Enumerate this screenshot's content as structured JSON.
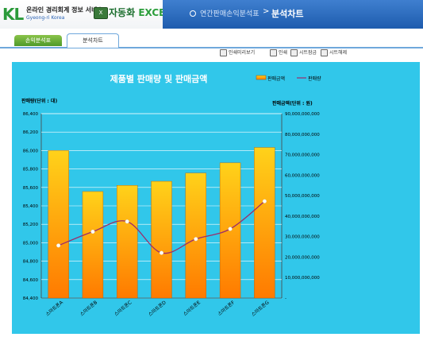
{
  "header": {
    "logo_text": "KL",
    "logo_main": "온라인 경리회계 정보 서비스",
    "logo_sub": "Gyeong-ri Korea",
    "excel_badge": "X",
    "excel_title_ko": "자동화",
    "excel_title_en": "EXCEL",
    "breadcrumb_parent": "연간판매손익분석표",
    "breadcrumb_sep": ">",
    "breadcrumb_current": "분석차트"
  },
  "tabs": [
    {
      "label": "손익분석표"
    },
    {
      "label": "분석차트"
    }
  ],
  "toolbar": [
    {
      "label": "인쇄미리보기",
      "icon": "print-preview-icon"
    },
    {
      "label": "인쇄",
      "icon": "print-icon"
    },
    {
      "label": "시트잠금",
      "icon": "lock-icon"
    },
    {
      "label": "시트해제",
      "icon": "unlock-icon"
    }
  ],
  "chart_data": {
    "type": "bar",
    "title": "제품별 판매량 및 판매금액",
    "ylabel": "판매량(단위 : 대)",
    "y2label": "판매금액(단위 : 원)",
    "categories": [
      "스마트폰A",
      "스마트폰B",
      "스마트폰C",
      "스마트폰D",
      "스마트폰E",
      "스마트폰F",
      "스마트폰G"
    ],
    "series": [
      {
        "name": "판매금액",
        "type": "bar",
        "axis": "right",
        "values": [
          72000000000,
          52000000000,
          55000000000,
          57000000000,
          61000000000,
          66000000000,
          73500000000
        ]
      },
      {
        "name": "판매량",
        "type": "line",
        "axis": "left",
        "values": [
          84970,
          85120,
          85230,
          84890,
          85040,
          85150,
          85450
        ]
      }
    ],
    "ylim": [
      84400,
      86400
    ],
    "yticks": [
      "84,400",
      "84,600",
      "84,800",
      "85,000",
      "85,200",
      "85,400",
      "85,600",
      "85,800",
      "86,000",
      "86,200",
      "86,400"
    ],
    "y2lim": [
      0,
      90000000000
    ],
    "y2ticks": [
      "-",
      "10,000,000,000",
      "20,000,000,000",
      "30,000,000,000",
      "40,000,000,000",
      "50,000,000,000",
      "60,000,000,000",
      "70,000,000,000",
      "80,000,000,000",
      "90,000,000,000"
    ],
    "legend_position": "top-right",
    "grid": true,
    "colors": {
      "background": "#31c7ea",
      "bar_top": "#ffd21a",
      "bar_bottom": "#ff7a00",
      "line": "#9b2d6b",
      "marker": "#ffffff",
      "grid": "#ffffff"
    }
  }
}
